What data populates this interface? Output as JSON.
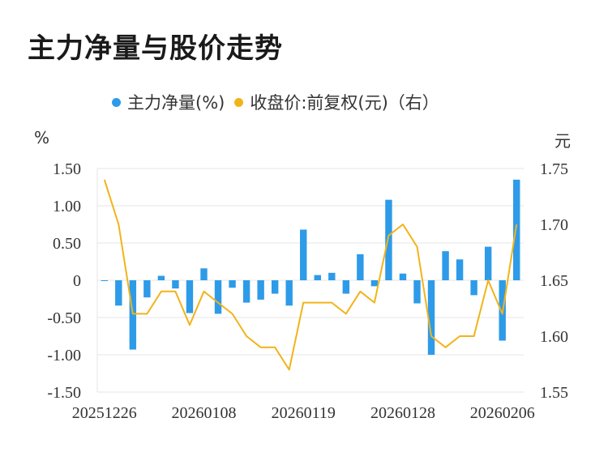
{
  "title": "主力净量与股价走势",
  "legend": {
    "series1": "主力净量(%)",
    "series2": "收盘价:前复权(元)（右）"
  },
  "axis": {
    "left_unit": "%",
    "right_unit": "元"
  },
  "colors": {
    "bar": "#2e9be8",
    "line": "#f2b31a",
    "grid": "#e6e6e6",
    "text": "#333333"
  },
  "chart_data": {
    "type": "bar",
    "x_tick_labels": [
      "20251226",
      "20260108",
      "20260119",
      "20260128",
      "20260206"
    ],
    "x_tick_indices": [
      0,
      7,
      14,
      21,
      28
    ],
    "y_left": {
      "ylim": [
        -1.5,
        1.5
      ],
      "ticks": [
        "1.50",
        "1.00",
        "0.50",
        "0",
        "-0.50",
        "-1.00",
        "-1.50"
      ],
      "tick_values": [
        1.5,
        1.0,
        0.5,
        0,
        -0.5,
        -1.0,
        -1.5
      ]
    },
    "y_right": {
      "ylim": [
        1.55,
        1.75
      ],
      "ticks": [
        "1.75",
        "1.70",
        "1.65",
        "1.60",
        "1.55"
      ],
      "tick_values": [
        1.75,
        1.7,
        1.65,
        1.6,
        1.55
      ]
    },
    "series": [
      {
        "name": "主力净量(%)",
        "type": "bar",
        "values": [
          0.0,
          -0.34,
          -0.93,
          -0.23,
          0.06,
          -0.11,
          -0.44,
          0.16,
          -0.45,
          -0.1,
          -0.3,
          -0.26,
          -0.18,
          -0.34,
          0.68,
          0.07,
          0.1,
          -0.18,
          0.35,
          -0.08,
          1.08,
          0.09,
          -0.31,
          -1.0,
          0.39,
          0.28,
          -0.2,
          0.45,
          -0.81,
          1.35
        ]
      },
      {
        "name": "收盘价:前复权(元)（右）",
        "type": "line",
        "values": [
          1.74,
          1.7,
          1.62,
          1.62,
          1.64,
          1.64,
          1.61,
          1.64,
          1.63,
          1.62,
          1.6,
          1.59,
          1.59,
          1.57,
          1.63,
          1.63,
          1.63,
          1.62,
          1.64,
          1.63,
          1.69,
          1.7,
          1.68,
          1.6,
          1.59,
          1.6,
          1.6,
          1.65,
          1.62,
          1.7
        ]
      }
    ]
  }
}
